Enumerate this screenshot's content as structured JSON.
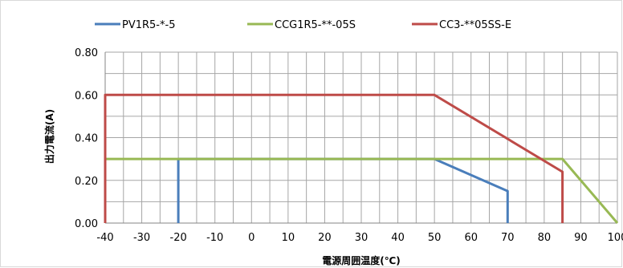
{
  "chart_data": {
    "type": "line",
    "title": "",
    "xlabel": "電源周囲温度(℃)",
    "ylabel": "出力電流(A)",
    "xlim": [
      -40,
      100
    ],
    "ylim": [
      0,
      0.8
    ],
    "x_ticks": [
      -40,
      -30,
      -20,
      -10,
      0,
      10,
      20,
      30,
      40,
      50,
      60,
      70,
      80,
      90,
      100
    ],
    "x_tick_labels": [
      "-40",
      "-30",
      "-20",
      "-10",
      "0",
      "10",
      "20",
      "30",
      "40",
      "50",
      "60",
      "70",
      "80",
      "90",
      "100"
    ],
    "y_ticks": [
      0,
      0.2,
      0.4,
      0.6,
      0.8
    ],
    "y_tick_labels": [
      "0.00",
      "0.20",
      "0.40",
      "0.60",
      "0.80"
    ],
    "grid": true,
    "legend_position": "top",
    "series": [
      {
        "name": "PV1R5-*-5",
        "color": "#4a7ebb",
        "points": [
          [
            -20,
            0
          ],
          [
            -20,
            0.3
          ],
          [
            50,
            0.3
          ],
          [
            70,
            0.15
          ],
          [
            70,
            0
          ]
        ]
      },
      {
        "name": "CCG1R5-**-05S",
        "color": "#98b954",
        "points": [
          [
            -40,
            0.3
          ],
          [
            85,
            0.3
          ],
          [
            100,
            0
          ]
        ]
      },
      {
        "name": "CC3-**05SS-E",
        "color": "#be4b48",
        "points": [
          [
            -40,
            0
          ],
          [
            -40,
            0.6
          ],
          [
            50,
            0.6
          ],
          [
            85,
            0.24
          ],
          [
            85,
            0
          ]
        ]
      }
    ]
  }
}
